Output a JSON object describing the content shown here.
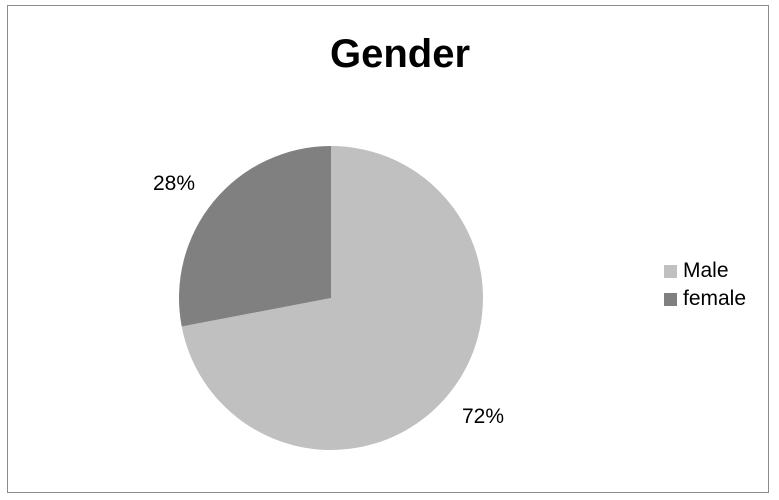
{
  "chart_data": {
    "type": "pie",
    "title": "Gender",
    "categories": [
      "Male",
      "female"
    ],
    "values": [
      72,
      28
    ],
    "data_labels": [
      "72%",
      "28%"
    ],
    "colors": [
      "#c0c0c0",
      "#808080"
    ],
    "legend_position": "right"
  }
}
